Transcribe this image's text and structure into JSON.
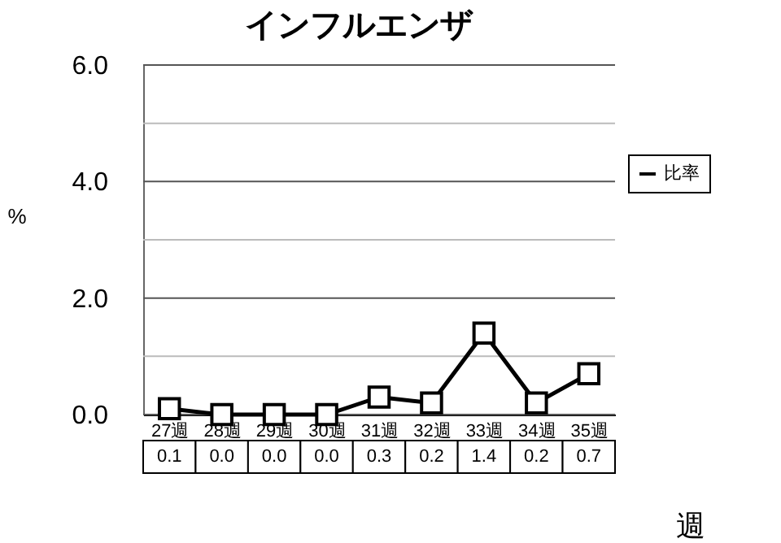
{
  "chart_data": {
    "type": "line",
    "title": "インフルエンザ",
    "xlabel": "週",
    "ylabel": "%",
    "categories": [
      "27週",
      "28週",
      "29週",
      "30週",
      "31週",
      "32週",
      "33週",
      "34週",
      "35週"
    ],
    "series": [
      {
        "name": "比率",
        "color": "#000000",
        "values": [
          0.1,
          0.0,
          0.0,
          0.0,
          0.3,
          0.2,
          1.4,
          0.2,
          0.7
        ],
        "value_labels": [
          "0.1",
          "0.0",
          "0.0",
          "0.0",
          "0.3",
          "0.2",
          "1.4",
          "0.2",
          "0.7"
        ]
      }
    ],
    "ylim": [
      0,
      6
    ],
    "yticks": [
      {
        "value": 0,
        "label": "0.0"
      },
      {
        "value": 1,
        "label": null
      },
      {
        "value": 2,
        "label": "2.0"
      },
      {
        "value": 3,
        "label": null
      },
      {
        "value": 4,
        "label": "4.0"
      },
      {
        "value": 5,
        "label": null
      },
      {
        "value": 6,
        "label": "6.0"
      }
    ],
    "grid": "y",
    "legend": "right",
    "marker": "square",
    "line_style": "solid"
  }
}
